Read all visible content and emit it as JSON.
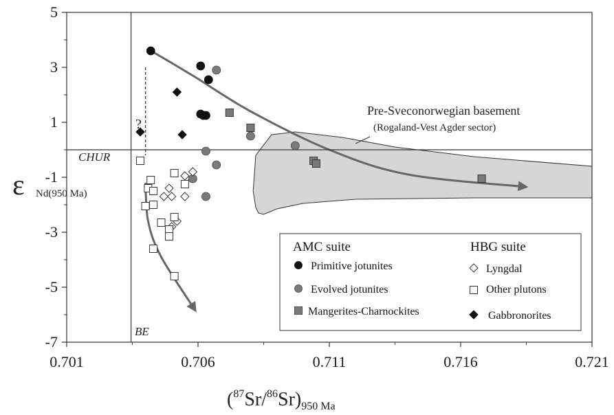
{
  "colors": {
    "primitive": "#111111",
    "evolved": "#7a7a7a",
    "mangerite": "#7a7a7a",
    "gabbronorite": "#111111",
    "open_marker": "#ffffff",
    "basement_fill": "#d6d6d6",
    "arrow": "#666666",
    "axis": "#333333"
  },
  "chart_data": {
    "type": "scatter",
    "xlabel_parts": {
      "open": "(",
      "sup1": "87",
      "mid": "Sr/",
      "sup2": "86",
      "close": "Sr)",
      "sub": "950 Ma"
    },
    "ylabel_parts": {
      "symbol": "ε",
      "sub": "Nd(950 Ma)"
    },
    "xlim": [
      0.701,
      0.721
    ],
    "ylim": [
      -7,
      5
    ],
    "x_ticks": [
      "0.701",
      "0.706",
      "0.711",
      "0.716",
      "0.721"
    ],
    "y_ticks": [
      "5",
      "3",
      "1",
      "-1",
      "-3",
      "-5",
      "-7"
    ],
    "grid": false,
    "reference_lines": {
      "chur_label": "CHUR",
      "chur_y": 0,
      "be_label": "BE",
      "be_x": 0.70345
    },
    "annotations": {
      "basement_title": "Pre-Sveconorwegian basement",
      "basement_subtitle": "(Rogaland-Vest Agder sector)",
      "question": "?"
    },
    "basement_field": [
      [
        0.7082,
        -2.1
      ],
      [
        0.7081,
        -1.5
      ],
      [
        0.7082,
        -0.2
      ],
      [
        0.7088,
        0.55
      ],
      [
        0.7097,
        0.65
      ],
      [
        0.7115,
        0.45
      ],
      [
        0.7135,
        0.1
      ],
      [
        0.7165,
        -0.25
      ],
      [
        0.721,
        -0.6
      ],
      [
        0.721,
        -1.75
      ],
      [
        0.7165,
        -1.75
      ],
      [
        0.712,
        -1.8
      ],
      [
        0.71,
        -1.95
      ],
      [
        0.709,
        -2.15
      ],
      [
        0.7085,
        -2.35
      ],
      [
        0.7083,
        -2.3
      ]
    ],
    "legend": {
      "position": "bottom-right",
      "amc_title": "AMC suite",
      "hbg_title": "HBG suite",
      "amc_items": [
        "Primitive jotunites",
        "Evolved jotunites",
        "Mangerites-Charnockites"
      ],
      "hbg_items": [
        "Lyngdal",
        "Other plutons",
        "Gabbronorites"
      ]
    },
    "series": [
      {
        "name": "Primitive jotunites",
        "marker": "circle-filled",
        "points": [
          [
            0.7042,
            3.6
          ],
          [
            0.7061,
            3.05
          ],
          [
            0.7064,
            2.55
          ],
          [
            0.7061,
            1.3
          ],
          [
            0.7062,
            1.25
          ],
          [
            0.7063,
            1.25
          ]
        ]
      },
      {
        "name": "Evolved jotunites",
        "marker": "circle-gray",
        "points": [
          [
            0.7067,
            2.9
          ],
          [
            0.7063,
            -0.05
          ],
          [
            0.7067,
            -0.55
          ],
          [
            0.7058,
            -1.05
          ],
          [
            0.7063,
            -1.7
          ],
          [
            0.708,
            0.5
          ],
          [
            0.7097,
            0.15
          ]
        ]
      },
      {
        "name": "Mangerites-Charnockites",
        "marker": "square-gray",
        "points": [
          [
            0.7072,
            1.35
          ],
          [
            0.708,
            0.8
          ],
          [
            0.7104,
            -0.4
          ],
          [
            0.7105,
            -0.5
          ],
          [
            0.7168,
            -1.05
          ]
        ]
      },
      {
        "name": "Lyngdal",
        "marker": "diamond-open",
        "points": [
          [
            0.7058,
            -0.8
          ],
          [
            0.7055,
            -0.95
          ],
          [
            0.7049,
            -1.4
          ],
          [
            0.7047,
            -1.7
          ],
          [
            0.705,
            -1.7
          ],
          [
            0.7055,
            -1.7
          ],
          [
            0.7052,
            -2.6
          ],
          [
            0.705,
            -2.8
          ]
        ]
      },
      {
        "name": "Other plutons",
        "marker": "square-open",
        "points": [
          [
            0.7038,
            -0.4
          ],
          [
            0.7042,
            -1.1
          ],
          [
            0.7041,
            -1.4
          ],
          [
            0.7043,
            -1.5
          ],
          [
            0.704,
            -2.05
          ],
          [
            0.7043,
            -2.0
          ],
          [
            0.7051,
            -0.85
          ],
          [
            0.7055,
            -1.25
          ],
          [
            0.7046,
            -2.65
          ],
          [
            0.7051,
            -2.45
          ],
          [
            0.7049,
            -2.9
          ],
          [
            0.7049,
            -3.15
          ],
          [
            0.7043,
            -3.6
          ],
          [
            0.7051,
            -4.6
          ]
        ]
      },
      {
        "name": "Gabbronorites",
        "marker": "diamond-filled",
        "points": [
          [
            0.7052,
            2.1
          ],
          [
            0.7054,
            0.55
          ],
          [
            0.7038,
            0.65
          ]
        ]
      }
    ],
    "trends": [
      {
        "points": [
          [
            0.7043,
            3.55
          ],
          [
            0.7058,
            2.7
          ],
          [
            0.708,
            1.4
          ],
          [
            0.711,
            0.0
          ],
          [
            0.714,
            -0.9
          ],
          [
            0.7185,
            -1.35
          ]
        ],
        "arrow": true
      },
      {
        "points": [
          [
            0.704,
            -1.2
          ],
          [
            0.7041,
            -2.6
          ],
          [
            0.7046,
            -3.9
          ],
          [
            0.7059,
            -5.85
          ]
        ],
        "arrow": true
      }
    ],
    "dashed_segment": [
      [
        0.704,
        3.0
      ],
      [
        0.704,
        -0.2
      ]
    ]
  }
}
